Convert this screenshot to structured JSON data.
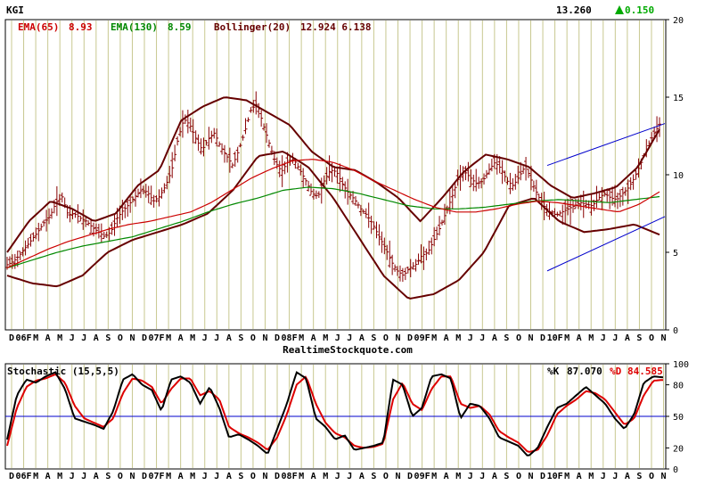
{
  "header": {
    "symbol": "KGI",
    "last_price": "13.260",
    "change": "0.150",
    "change_color": "#00aa00"
  },
  "main_chart": {
    "legend": [
      {
        "label": "EMA(65)",
        "value": "8.93",
        "color": "#cc0000"
      },
      {
        "label": "EMA(130)",
        "value": "8.59",
        "color": "#008800"
      },
      {
        "label": "Bollinger(20)",
        "value": "12.924 6.138",
        "color": "#660000"
      }
    ],
    "watermark": "RealtimeStockquote.com",
    "y_ticks": [
      0,
      5,
      10,
      15,
      20
    ],
    "colors": {
      "background": "#ffffff",
      "vertical_grid": "#c8c890",
      "bars": "#880000",
      "ema65": "#cc0000",
      "ema130": "#008800",
      "bollinger": "#660000",
      "trend_channel": "#0000cc"
    }
  },
  "x_axis_labels": [
    "D",
    "06F",
    "M",
    "A",
    "M",
    "J",
    "J",
    "A",
    "S",
    "O",
    "N",
    "D",
    "07F",
    "M",
    "A",
    "M",
    "J",
    "J",
    "A",
    "S",
    "O",
    "N",
    "D",
    "08F",
    "M",
    "A",
    "M",
    "J",
    "J",
    "A",
    "S",
    "O",
    "N",
    "D",
    "09F",
    "M",
    "A",
    "M",
    "J",
    "J",
    "A",
    "S",
    "O",
    "N",
    "D",
    "10F",
    "M",
    "A",
    "M",
    "J",
    "J",
    "A",
    "S",
    "O",
    "N"
  ],
  "stochastic": {
    "title": "Stochastic (15,5,5)",
    "k_label": "%K",
    "k_value": "87.070",
    "d_label": "%D",
    "d_value": "84.585",
    "y_ticks": [
      0,
      20,
      50,
      80,
      100
    ],
    "midline": 50,
    "k_color": "#000000",
    "d_color": "#dd0000",
    "midline_color": "#0000cc"
  },
  "chart_data": [
    {
      "type": "bar",
      "subtype": "ohlc-weekly",
      "y_axis_position": "right",
      "ylim": [
        0,
        20
      ],
      "x_range": [
        "2005-12",
        "2010-11"
      ],
      "close_approx": [
        4.2,
        4.4,
        4.8,
        5.3,
        5.8,
        6.3,
        6.9,
        7.3,
        8.2,
        8.6,
        7.4,
        7.5,
        7.2,
        7.0,
        6.6,
        6.3,
        6.0,
        6.3,
        7.2,
        7.7,
        8.1,
        8.6,
        9.0,
        8.9,
        8.3,
        8.6,
        9.3,
        10.3,
        12.3,
        13.6,
        13.2,
        12.3,
        11.6,
        12.3,
        12.7,
        11.8,
        11.2,
        10.6,
        11.6,
        12.8,
        14.2,
        14.6,
        13.2,
        12.0,
        10.8,
        10.2,
        10.8,
        11.0,
        10.3,
        9.6,
        8.8,
        8.6,
        9.6,
        10.3,
        10.2,
        9.4,
        8.8,
        8.4,
        7.8,
        7.4,
        6.8,
        6.0,
        5.3,
        4.4,
        3.8,
        3.5,
        4.0,
        4.2,
        4.8,
        5.0,
        5.8,
        6.6,
        7.6,
        8.6,
        9.8,
        10.2,
        9.8,
        9.4,
        9.6,
        10.3,
        10.8,
        10.4,
        9.6,
        9.3,
        9.9,
        10.6,
        9.6,
        8.7,
        8.0,
        7.6,
        7.4,
        7.6,
        7.8,
        8.0,
        8.2,
        8.1,
        8.0,
        8.5,
        8.8,
        8.5,
        8.4,
        8.8,
        9.2,
        9.9,
        10.8,
        11.8,
        12.6,
        13.26
      ],
      "ema65_approx": [
        4.0,
        4.6,
        5.2,
        5.7,
        6.1,
        6.5,
        6.8,
        7.0,
        7.3,
        7.6,
        8.2,
        9.0,
        9.8,
        10.4,
        10.9,
        11.0,
        10.8,
        10.3,
        9.6,
        9.0,
        8.4,
        7.9,
        7.6,
        7.6,
        7.8,
        8.1,
        8.3,
        8.2,
        8.0,
        7.8,
        7.6,
        8.1,
        8.9
      ],
      "ema130_approx": [
        4.0,
        4.5,
        5.0,
        5.4,
        5.7,
        6.0,
        6.5,
        7.0,
        7.6,
        8.1,
        8.5,
        9.0,
        9.2,
        9.1,
        8.8,
        8.4,
        8.0,
        7.8,
        7.8,
        7.9,
        8.1,
        8.3,
        8.4,
        8.3,
        8.2,
        8.4,
        8.59
      ],
      "bollinger_upper_approx": [
        5.0,
        7.0,
        8.3,
        7.8,
        7.0,
        7.5,
        9.3,
        10.3,
        13.5,
        14.4,
        15.0,
        14.8,
        14.0,
        13.2,
        11.5,
        10.5,
        10.3,
        9.5,
        8.5,
        7.0,
        8.5,
        10.2,
        11.3,
        11.0,
        10.5,
        9.3,
        8.5,
        8.8,
        9.2,
        10.5,
        12.924
      ],
      "bollinger_lower_approx": [
        3.5,
        3.0,
        2.8,
        3.5,
        5.0,
        5.8,
        6.3,
        6.8,
        7.5,
        9.0,
        11.2,
        11.5,
        10.5,
        8.5,
        6.0,
        3.5,
        2.0,
        2.3,
        3.2,
        5.0,
        8.0,
        8.5,
        7.0,
        6.3,
        6.5,
        6.8,
        6.138
      ]
    },
    {
      "type": "line",
      "title": "Stochastic (15,5,5)",
      "ylim": [
        0,
        100
      ],
      "series": [
        {
          "name": "%K",
          "values": [
            28,
            70,
            85,
            82,
            88,
            92,
            76,
            48,
            45,
            42,
            38,
            55,
            85,
            90,
            80,
            75,
            55,
            85,
            88,
            82,
            62,
            78,
            58,
            30,
            33,
            28,
            22,
            14,
            38,
            62,
            92,
            86,
            48,
            40,
            28,
            32,
            18,
            20,
            22,
            25,
            85,
            80,
            50,
            58,
            88,
            90,
            86,
            48,
            62,
            60,
            48,
            30,
            26,
            22,
            12,
            20,
            40,
            58,
            62,
            70,
            78,
            70,
            62,
            48,
            38,
            52,
            82,
            88,
            87.07
          ]
        },
        {
          "name": "%D",
          "values": [
            22,
            58,
            78,
            84,
            86,
            90,
            82,
            60,
            48,
            44,
            40,
            48,
            72,
            86,
            84,
            78,
            62,
            76,
            86,
            86,
            70,
            74,
            66,
            40,
            34,
            30,
            25,
            18,
            30,
            52,
            80,
            88,
            62,
            44,
            34,
            30,
            22,
            20,
            21,
            24,
            66,
            82,
            62,
            56,
            76,
            88,
            88,
            62,
            58,
            60,
            52,
            36,
            30,
            25,
            16,
            18,
            32,
            52,
            60,
            66,
            74,
            72,
            66,
            54,
            42,
            48,
            70,
            84,
            84.585
          ]
        }
      ]
    }
  ]
}
